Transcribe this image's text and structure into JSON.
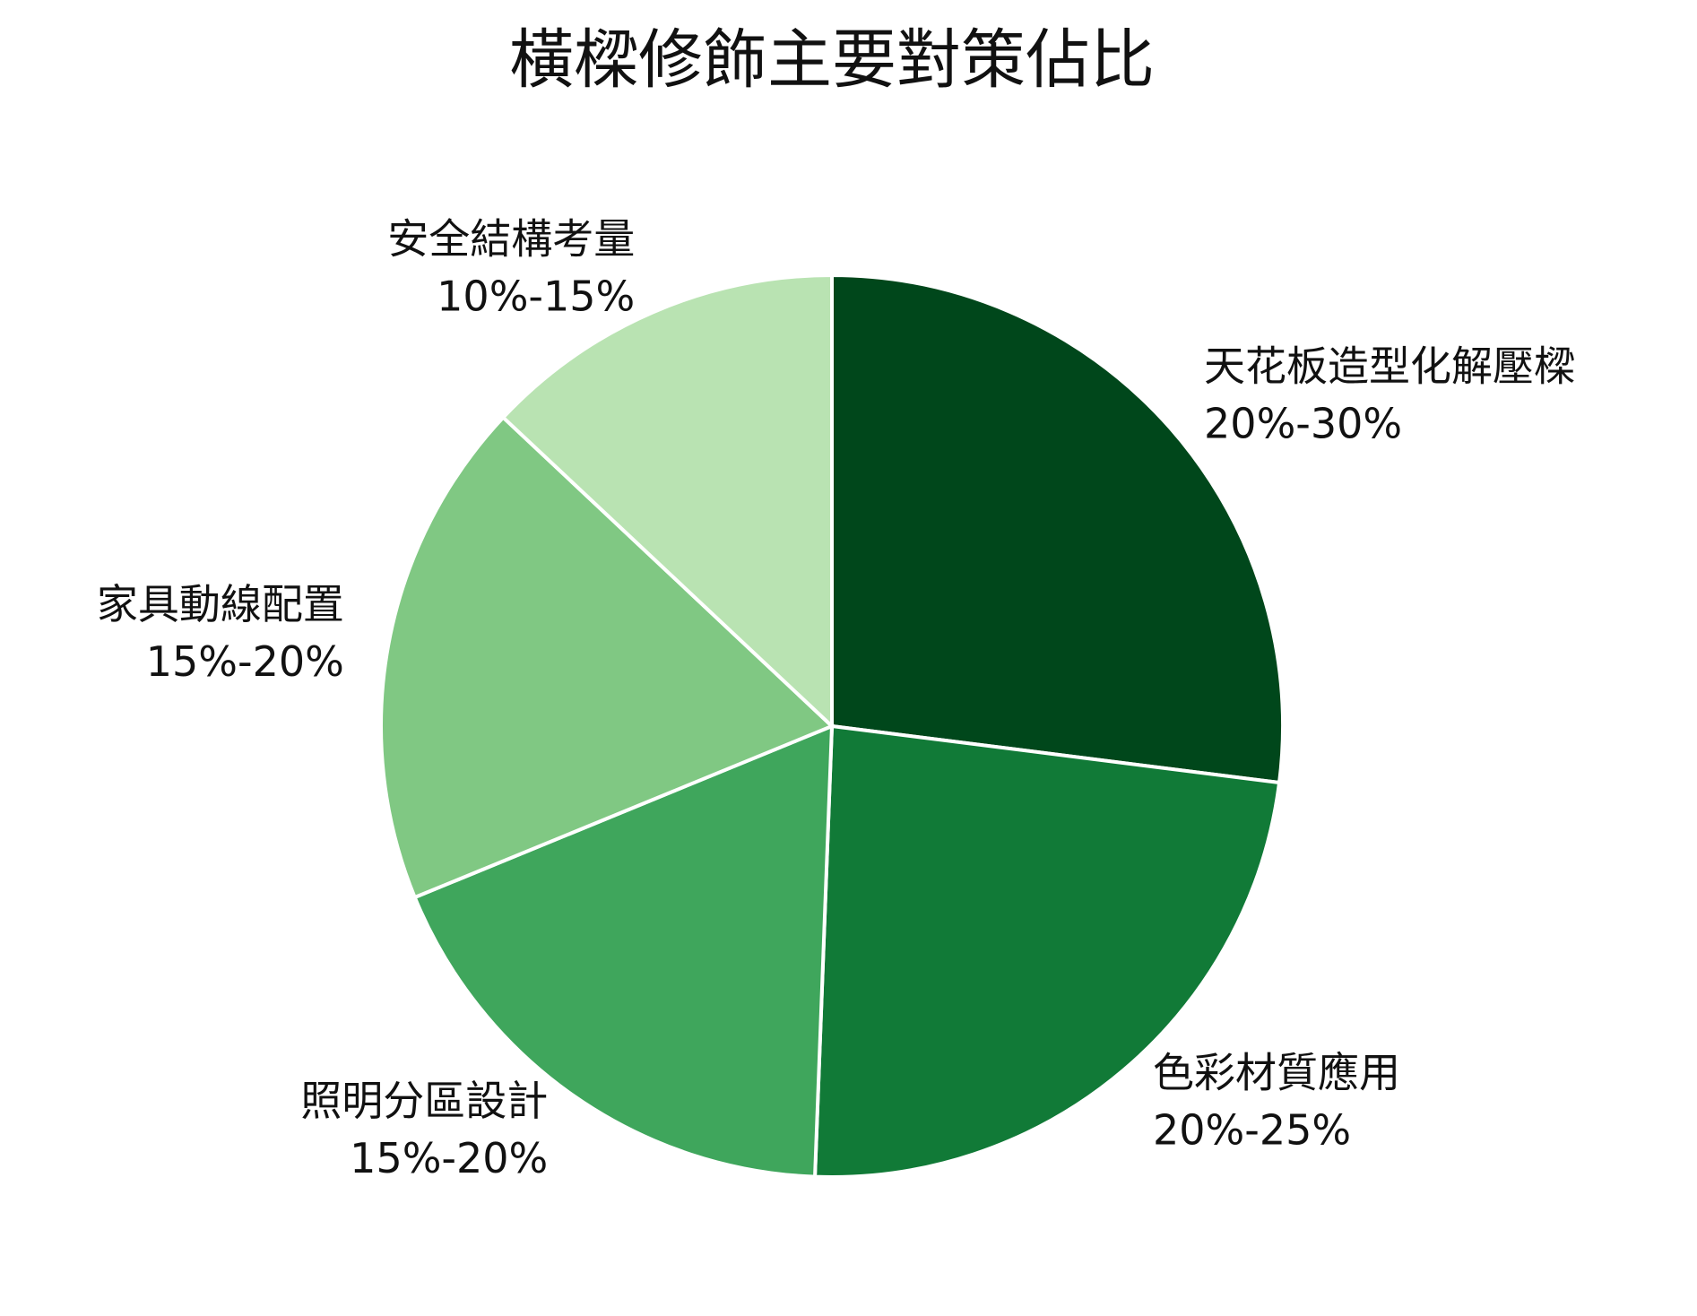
{
  "chart_data": {
    "type": "pie",
    "title": "橫樑修飾主要對策佔比",
    "categories": [
      "天花板造型化解壓樑",
      "色彩材質應用",
      "照明分區設計",
      "家具動線配置",
      "安全結構考量"
    ],
    "values": [
      27,
      23.6,
      18.2,
      18.2,
      13
    ],
    "value_labels": [
      "20%-30%",
      "20%-25%",
      "15%-20%",
      "15%-20%",
      "10%-15%"
    ],
    "colors": [
      "#00471b",
      "#117a37",
      "#3fa65c",
      "#80c883",
      "#b9e3b2"
    ]
  }
}
